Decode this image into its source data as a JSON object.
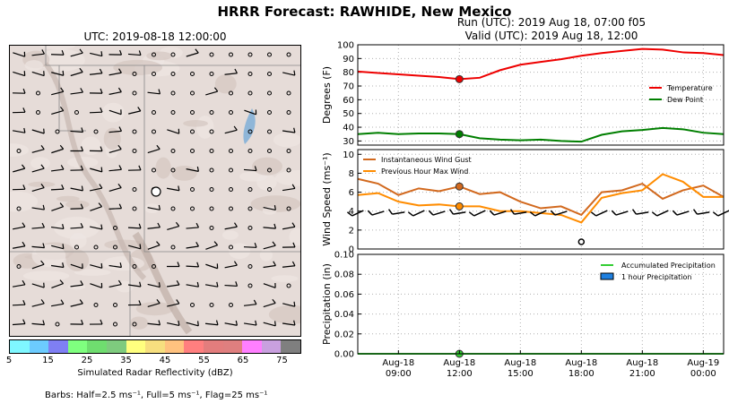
{
  "suptitle": "HRRR Forecast: RAWHIDE, New Mexico",
  "map": {
    "title": "UTC: 2019-08-18 12:00:00",
    "colorbar": {
      "label": "Simulated Radar Reflectivity (dBZ)",
      "ticks": [
        "5",
        "15",
        "25",
        "35",
        "45",
        "55",
        "65",
        "75"
      ],
      "colors": [
        "#7ff7ff",
        "#6ccbfe",
        "#7f7ff4",
        "#7fff7f",
        "#6fdd6f",
        "#7ecb7e",
        "#ffff7f",
        "#f7df7f",
        "#ffc27f",
        "#ff7f7f",
        "#e37d7d",
        "#df7f7f",
        "#ff7fff",
        "#c9a0df",
        "#7f7f7f"
      ]
    },
    "barb_note": "Barbs: Half=2.5 ms⁻¹, Full=5 ms⁻¹, Flag=25 ms⁻¹"
  },
  "run_title": [
    "Run (UTC): 2019 Aug 18, 07:00 f05",
    "Valid (UTC): 2019 Aug 18, 12:00"
  ],
  "chart_data": [
    {
      "type": "line",
      "ylabel": "Degrees (F)",
      "ylim": [
        27,
        100
      ],
      "yticks": [
        30,
        40,
        50,
        60,
        70,
        80,
        90,
        100
      ],
      "x": [
        "2019-08-18 07:00",
        "2019-08-18 08:00",
        "2019-08-18 09:00",
        "2019-08-18 10:00",
        "2019-08-18 11:00",
        "2019-08-18 12:00",
        "2019-08-18 13:00",
        "2019-08-18 14:00",
        "2019-08-18 15:00",
        "2019-08-18 16:00",
        "2019-08-18 17:00",
        "2019-08-18 18:00",
        "2019-08-18 19:00",
        "2019-08-18 20:00",
        "2019-08-18 21:00",
        "2019-08-18 22:00",
        "2019-08-18 23:00",
        "2019-08-19 00:00",
        "2019-08-19 01:00"
      ],
      "series": [
        {
          "name": "Temperature",
          "color": "#ee0000",
          "values": [
            80.5,
            79.5,
            78.5,
            77.5,
            76.5,
            75,
            76,
            81.5,
            85.5,
            87.5,
            89.5,
            92,
            94,
            95.5,
            97,
            96.5,
            94.5,
            94,
            92.5
          ]
        },
        {
          "name": "Dew Point",
          "color": "#007f00",
          "values": [
            35,
            36,
            35,
            35.5,
            35.5,
            35,
            32,
            31,
            30.5,
            31,
            30,
            29.5,
            34.5,
            37,
            38,
            39.5,
            38.5,
            36,
            35
          ]
        }
      ],
      "marker_x": "2019-08-18 12:00",
      "legend": "center-right"
    },
    {
      "type": "line",
      "ylabel": "Wind Speed (ms⁻¹)",
      "ylim": [
        0,
        10.5
      ],
      "yticks": [
        0,
        2,
        4,
        6,
        8,
        10
      ],
      "x": [
        "2019-08-18 07:00",
        "2019-08-18 08:00",
        "2019-08-18 09:00",
        "2019-08-18 10:00",
        "2019-08-18 11:00",
        "2019-08-18 12:00",
        "2019-08-18 13:00",
        "2019-08-18 14:00",
        "2019-08-18 15:00",
        "2019-08-18 16:00",
        "2019-08-18 17:00",
        "2019-08-18 18:00",
        "2019-08-18 19:00",
        "2019-08-18 20:00",
        "2019-08-18 21:00",
        "2019-08-18 22:00",
        "2019-08-18 23:00",
        "2019-08-19 00:00",
        "2019-08-19 01:00"
      ],
      "series": [
        {
          "name": "Instantaneous Wind Gust",
          "color": "#d2691e",
          "values": [
            7.4,
            6.9,
            5.7,
            6.4,
            6.1,
            6.6,
            5.8,
            6.0,
            5.0,
            4.3,
            4.5,
            3.6,
            6.0,
            6.2,
            6.9,
            5.3,
            6.2,
            6.7,
            5.5
          ]
        },
        {
          "name": "Previous Hour Max Wind",
          "color": "#ff8c00",
          "values": [
            5.7,
            5.9,
            5.0,
            4.6,
            4.7,
            4.5,
            4.5,
            4.0,
            4.0,
            3.8,
            3.6,
            2.8,
            5.4,
            5.9,
            6.2,
            7.9,
            7.1,
            5.5,
            5.5
          ]
        }
      ],
      "marker_x": "2019-08-18 12:00",
      "legend": "upper-left"
    },
    {
      "type": "bar",
      "ylabel": "Precipitation (in)",
      "ylim": [
        0,
        0.1
      ],
      "yticks": [
        "0.00",
        "0.02",
        "0.04",
        "0.06",
        "0.08",
        "0.10"
      ],
      "series": [
        {
          "name": "Accumulated Precipitation",
          "color": "#32cd32",
          "values": [
            0
          ]
        },
        {
          "name": "1 hour Precipitation",
          "color": "#1e7fdf",
          "values": [
            0
          ]
        }
      ],
      "marker_x": "2019-08-18 12:00",
      "legend": "upper-right",
      "xtick_labels": [
        [
          "Aug-18",
          "09:00"
        ],
        [
          "Aug-18",
          "12:00"
        ],
        [
          "Aug-18",
          "15:00"
        ],
        [
          "Aug-18",
          "18:00"
        ],
        [
          "Aug-18",
          "21:00"
        ],
        [
          "Aug-19",
          "00:00"
        ]
      ]
    }
  ]
}
